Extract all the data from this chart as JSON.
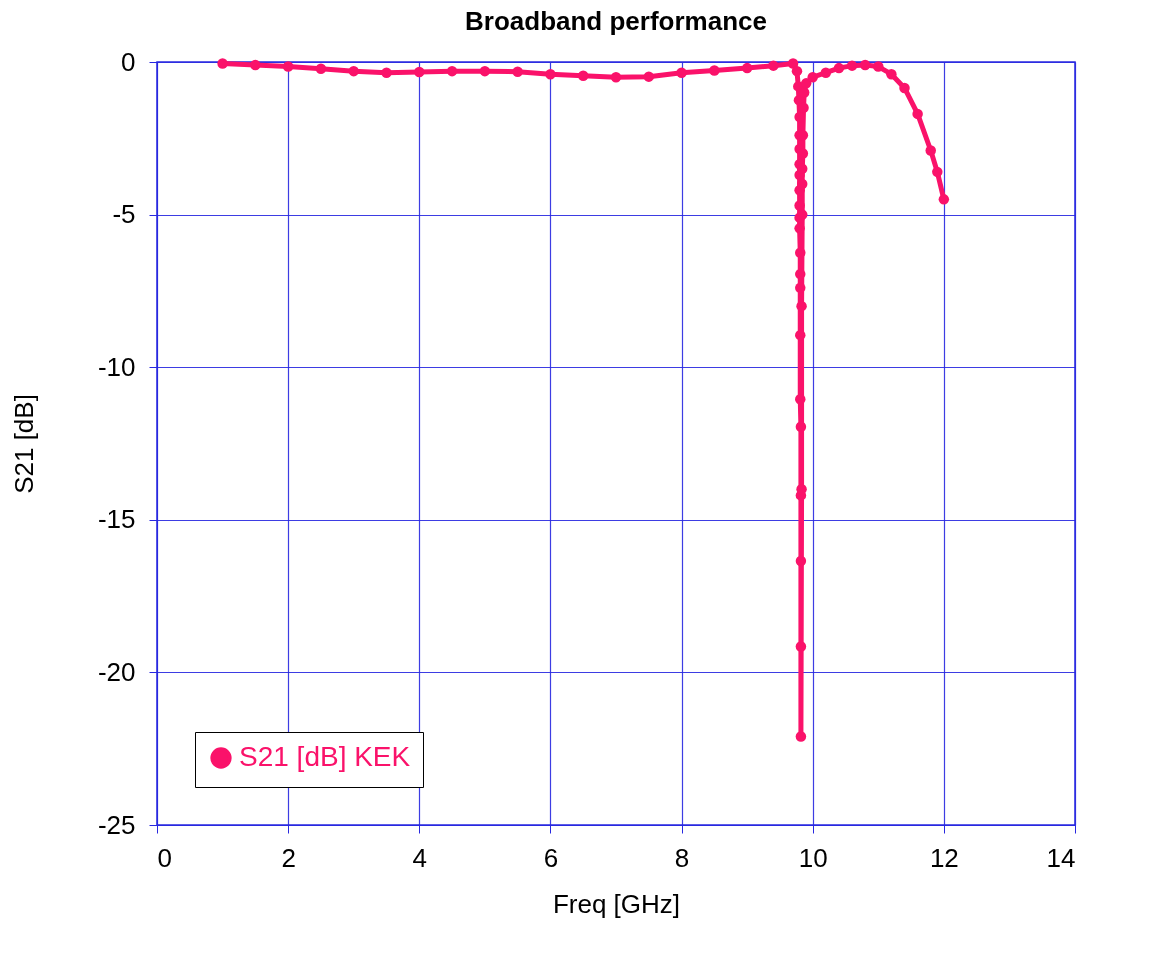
{
  "chart_data": {
    "type": "line",
    "title": "Broadband performance",
    "xlabel": "Freq [GHz]",
    "ylabel": "S21 [dB]",
    "xlim": [
      0,
      14
    ],
    "xticks": [
      0,
      2,
      4,
      6,
      8,
      10,
      12,
      14
    ],
    "ylim": [
      -25,
      0
    ],
    "yticks": [
      -25,
      -20,
      -15,
      -10,
      -5,
      0
    ],
    "grid": true,
    "legend": "bottom left",
    "marker": "circle",
    "line_style": "solid",
    "series": [
      {
        "name": "S21 [dB] KEK",
        "color": "#fa126a",
        "x": [
          1,
          1.5,
          2,
          2.5,
          3,
          3.5,
          4,
          4.5,
          5,
          5.5,
          6,
          6.5,
          7,
          7.5,
          8,
          8.5,
          9,
          9.4,
          9.7,
          9.76,
          9.78,
          9.79,
          9.8,
          9.8,
          9.8,
          9.8,
          9.8,
          9.8,
          9.8,
          9.8,
          9.8,
          9.81,
          9.81,
          9.81,
          9.81,
          9.81,
          9.82,
          9.82,
          9.82,
          9.82,
          9.82,
          9.83,
          9.83,
          9.84,
          9.84,
          9.84,
          9.85,
          9.85,
          9.86,
          9.87,
          9.9,
          10,
          10.2,
          10.4,
          10.6,
          10.8,
          11,
          11.2,
          11.4,
          11.6,
          11.8,
          11.9,
          12
        ],
        "values": [
          -0.05,
          -0.1,
          -0.15,
          -0.22,
          -0.3,
          -0.35,
          -0.33,
          -0.3,
          -0.3,
          -0.32,
          -0.4,
          -0.45,
          -0.5,
          -0.48,
          -0.35,
          -0.28,
          -0.2,
          -0.12,
          -0.05,
          -0.3,
          -0.8,
          -1.25,
          -1.8,
          -2.4,
          -2.85,
          -3.35,
          -3.7,
          -4.2,
          -4.7,
          -5.1,
          -5.45,
          -6.25,
          -6.95,
          -7.4,
          -8.95,
          -11.05,
          -11.95,
          -14.2,
          -16.35,
          -19.15,
          -22.1,
          -14,
          -8,
          -5,
          -4,
          -3.5,
          -3,
          -2.4,
          -1.5,
          -1,
          -0.7,
          -0.5,
          -0.35,
          -0.2,
          -0.12,
          -0.1,
          -0.15,
          -0.4,
          -0.85,
          -1.7,
          -2.9,
          -3.6,
          -4.5
        ]
      }
    ]
  }
}
